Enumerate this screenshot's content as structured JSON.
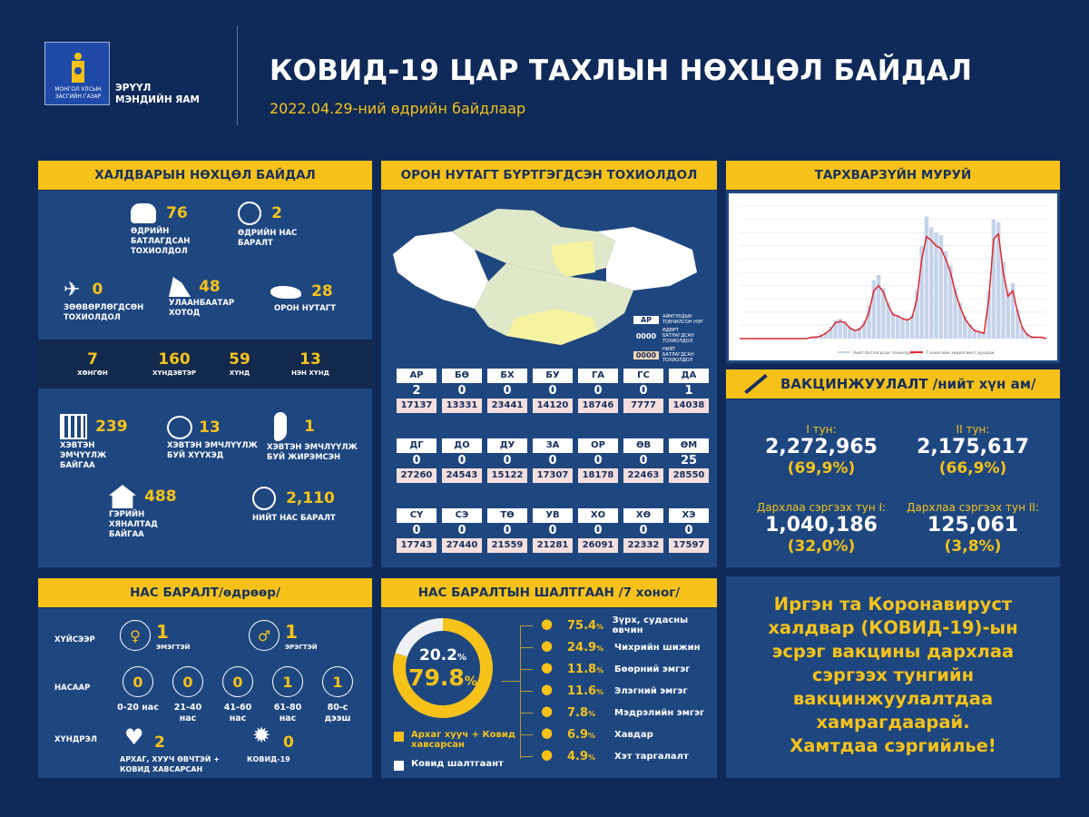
{
  "header": {
    "emblem_text": "МОНГОЛ УЛСЫН ЗАСГИЙН ГАЗАР",
    "ministry_line1": "ЭРҮҮЛ",
    "ministry_line2": "МЭНДИЙН ЯАМ",
    "title": "КОВИД-19 ЦАР ТАХЛЫН НӨХЦӨЛ БАЙДАЛ",
    "subtitle": "2022.04.29-ний өдрийн байдлаар"
  },
  "colors": {
    "background": "#0f2a58",
    "panel": "#1e4780",
    "accent": "#f6c21a",
    "dark_strip": "#13294d"
  },
  "infection": {
    "title": "ХАЛДВАРЫН НӨХЦӨЛ БАЙДАЛ",
    "daily_cases": {
      "value": "76",
      "label": "ӨДРИЙН БАТЛАГДСАН ТОХИОЛДОЛ"
    },
    "daily_deaths": {
      "value": "2",
      "label": "ӨДРИЙН НАС БАРАЛТ"
    },
    "imported": {
      "value": "0",
      "label": "ЗӨӨВӨРЛӨГДСӨН ТОХИОЛДОЛ"
    },
    "ulaanbaatar": {
      "value": "48",
      "label": "УЛААНБААТАР ХОТОД"
    },
    "rural": {
      "value": "28",
      "label": "ОРОН НУТАГТ"
    },
    "severity": [
      {
        "value": "7",
        "label": "ХӨНГӨН"
      },
      {
        "value": "160",
        "label": "ХҮНДЭВТЭР"
      },
      {
        "value": "59",
        "label": "ХҮНД"
      },
      {
        "value": "13",
        "label": "НЭН ХҮНД"
      }
    ],
    "hospitalized": {
      "value": "239",
      "label": "ХЭВТЭН ЭМЧҮҮЛЖ БАЙГАА"
    },
    "children": {
      "value": "13",
      "label": "ХЭВТЭН ЭМЧЛҮҮЛЖ БУЙ ХҮҮХЭД"
    },
    "pregnant": {
      "value": "1",
      "label": "ХЭВТЭН ЭМЧЛҮҮЛЖ БУЙ ЖИРЭМСЭН"
    },
    "home_monitoring": {
      "value": "488",
      "label": "ГЭРИЙН ХЯНАЛТАД БАЙГАА"
    },
    "total_deaths": {
      "value": "2,110",
      "label": "НИЙТ НАС БАРАЛТ"
    }
  },
  "provinces": {
    "title": "ОРОН НУТАГТ БҮРТГЭГДСЭН ТОХИОЛДОЛ",
    "legend": {
      "code": "АР",
      "code_label": "АЙМГУУДЫН ТОВЧИЛСОН НЭР",
      "daily": "0000",
      "daily_label": "ӨДӨРТ БАТЛАГДСАН ТОХИОЛДОЛ",
      "total": "0000",
      "total_label": "НИЙТ БАТЛАГДСАН ТОХИОЛДОЛ"
    },
    "items": [
      {
        "code": "АР",
        "daily": "2",
        "total": "17137"
      },
      {
        "code": "БӨ",
        "daily": "0",
        "total": "13331"
      },
      {
        "code": "БХ",
        "daily": "0",
        "total": "23441"
      },
      {
        "code": "БУ",
        "daily": "0",
        "total": "14120"
      },
      {
        "code": "ГА",
        "daily": "0",
        "total": "18746"
      },
      {
        "code": "ГС",
        "daily": "0",
        "total": "7777"
      },
      {
        "code": "ДА",
        "daily": "1",
        "total": "14038"
      },
      {
        "code": "ДГ",
        "daily": "0",
        "total": "27260"
      },
      {
        "code": "ДО",
        "daily": "0",
        "total": "24543"
      },
      {
        "code": "ДУ",
        "daily": "0",
        "total": "15122"
      },
      {
        "code": "ЗА",
        "daily": "0",
        "total": "17307"
      },
      {
        "code": "ОР",
        "daily": "0",
        "total": "18178"
      },
      {
        "code": "ӨВ",
        "daily": "0",
        "total": "22463"
      },
      {
        "code": "ӨМ",
        "daily": "25",
        "total": "28550"
      },
      {
        "code": "СҮ",
        "daily": "0",
        "total": "17743"
      },
      {
        "code": "СЭ",
        "daily": "0",
        "total": "27440"
      },
      {
        "code": "ТӨ",
        "daily": "0",
        "total": "21559"
      },
      {
        "code": "УВ",
        "daily": "0",
        "total": "21281"
      },
      {
        "code": "ХО",
        "daily": "0",
        "total": "26091"
      },
      {
        "code": "ХӨ",
        "daily": "0",
        "total": "22332"
      },
      {
        "code": "ХЭ",
        "daily": "0",
        "total": "17597"
      }
    ]
  },
  "epi_curve": {
    "title": "ТАРХВАРЗҮЙН МУРУЙ",
    "chart_data": {
      "type": "area",
      "grid": true,
      "legend": "bottom",
      "series": [
        {
          "name": "Нийт батлагдсан тохиолдол",
          "color": "#c5d3ea",
          "values": [
            0,
            0,
            0,
            0,
            0,
            0,
            0,
            0,
            0,
            0,
            0,
            0,
            0,
            0,
            0,
            1,
            2,
            3,
            5,
            9,
            14,
            15,
            13,
            9,
            7,
            8,
            13,
            25,
            44,
            48,
            38,
            27,
            20,
            18,
            16,
            15,
            18,
            36,
            70,
            92,
            84,
            80,
            78,
            66,
            55,
            38,
            27,
            17,
            11,
            7,
            6,
            5,
            36,
            90,
            88,
            58,
            36,
            42,
            22,
            9,
            4,
            2,
            1,
            1,
            0
          ]
        },
        {
          "name": "7 хоногийн хөдөлгөөнт дундаж",
          "color": "#e0262a",
          "values": [
            0,
            0,
            0,
            0,
            0,
            0,
            0,
            0,
            0,
            0,
            0,
            0,
            0,
            0,
            0,
            1,
            1,
            2,
            4,
            7,
            12,
            13,
            12,
            8,
            6,
            7,
            11,
            20,
            36,
            40,
            35,
            25,
            18,
            17,
            15,
            14,
            16,
            30,
            60,
            77,
            74,
            70,
            68,
            60,
            50,
            35,
            24,
            15,
            10,
            6,
            5,
            4,
            30,
            75,
            79,
            50,
            32,
            36,
            20,
            8,
            3,
            1,
            1,
            1,
            0
          ]
        }
      ]
    }
  },
  "vaccination": {
    "title": "ВАКЦИНЖУУЛАЛТ /нийт хүн ам/",
    "items": [
      {
        "label": "I тун:",
        "value": "2,272,965",
        "pct": "(69,9%)"
      },
      {
        "label": "II тун:",
        "value": "2,175,617",
        "pct": "(66,9%)"
      },
      {
        "label": "Дархлаа сэргээх тун I:",
        "value": "1,040,186",
        "pct": "(32,0%)"
      },
      {
        "label": "Дархлаа сэргээх тун II:",
        "value": "125,061",
        "pct": "(3,8%)"
      }
    ]
  },
  "deaths_daily": {
    "title": "НАС БАРАЛТ/өдрөөр/",
    "row_sex": "ХҮЙСЭЭР",
    "row_age": "НАСААР",
    "row_comp": "ХҮНДРЭЛ",
    "female": {
      "value": "1",
      "label": "ЭМЭГТЭЙ"
    },
    "male": {
      "value": "1",
      "label": "ЭРЭГТЭЙ"
    },
    "ages": [
      {
        "value": "0",
        "label": "0-20 нас"
      },
      {
        "value": "0",
        "label": "21-40 нас"
      },
      {
        "value": "0",
        "label": "41-60 нас"
      },
      {
        "value": "1",
        "label": "61-80 нас"
      },
      {
        "value": "1",
        "label": "80-с дээш"
      }
    ],
    "chronic": {
      "value": "2",
      "label": "АРХАГ, ХУУЧ ӨВЧТЭЙ + КОВИД ХАВСАРСАН"
    },
    "covid": {
      "value": "0",
      "label": "КОВИД-19"
    }
  },
  "death_causes": {
    "title": "НАС БАРАЛТЫН ШАЛТГААН /7 хоног/",
    "donut": {
      "covid_only_pct": 20.2,
      "comorbid_pct": 79.8,
      "covid_only_text": "20.2",
      "comorbid_text": "79.8",
      "unit": "%"
    },
    "legend": [
      {
        "label": "Архаг хууч + Ковид хавсарсан",
        "color": "#f6c21a"
      },
      {
        "label": "Ковид шалтгаант",
        "color": "#ffffff"
      }
    ],
    "items": [
      {
        "pct": "75.4",
        "label": "Зүрх, судасны өвчин",
        "icon": "heart-icon"
      },
      {
        "pct": "24.9",
        "label": "Чихрийн шижин",
        "icon": "glucose-meter-icon"
      },
      {
        "pct": "11.8",
        "label": "Бөөрний эмгэг",
        "icon": "kidney-icon"
      },
      {
        "pct": "11.6",
        "label": "Элэгний эмгэг",
        "icon": "liver-icon"
      },
      {
        "pct": "7.8",
        "label": "Мэдрэлийн эмгэг",
        "icon": "brain-icon"
      },
      {
        "pct": "6.9",
        "label": "Хавдар",
        "icon": "tumor-icon"
      },
      {
        "pct": "4.9",
        "label": "Хэт таргалалт",
        "icon": "obesity-icon"
      }
    ],
    "pct_unit": "%"
  },
  "message": {
    "lines": [
      "Иргэн та Коронавируст",
      "халдвар (КОВИД-19)-ын",
      "эсрэг вакцины дархлаа",
      "сэргээх тунгийн",
      "вакцинжуулалтдаа",
      "хамрагдаарай.",
      "Хамтдаа сэргийлье!"
    ]
  }
}
